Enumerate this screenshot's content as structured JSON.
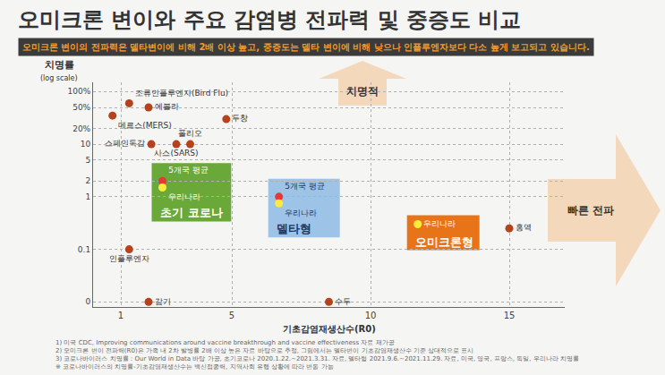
{
  "chart_data": {
    "type": "scatter",
    "title": "오미크론 변이와 주요 감염병 전파력 및 중증도 비교",
    "subtitle": "오미크론 변이의 전파력은 델타변이에 비해 2배 이상 높고, 중증도는 델타 변이에 비해 낮으나 인플루엔자보다 다소 높게 보고되고 있습니다.",
    "xlabel": "기초감염재생산수(R0)",
    "ylabel": [
      "치명률",
      "(log scale)"
    ],
    "log": "y",
    "grid": true,
    "xlim": [
      0,
      17
    ],
    "xticks": [
      1,
      5,
      10,
      15
    ],
    "ylim": [
      0.008,
      150
    ],
    "yticks": [
      {
        "value": 0.01,
        "label": "0"
      },
      0.1,
      1,
      2,
      5,
      10,
      {
        "value": 20,
        "label": "20%"
      },
      {
        "value": 50,
        "label": "50%"
      },
      {
        "value": 100,
        "label": "100%"
      }
    ],
    "series": [
      {
        "labels": [
          "메르스(MERS)",
          "조류인플루엔자(Bird Flu)",
          "에볼라",
          "두창",
          "스페인독감",
          "사스(SARS)",
          "폴리오",
          "인플루엔자",
          "감기",
          "수두",
          "홍역"
        ],
        "x": [
          0.7,
          1.3,
          2.0,
          4.8,
          2.1,
          3.0,
          3.5,
          1.3,
          2.0,
          8.5,
          15.0
        ],
        "values": [
          35,
          60,
          50,
          30,
          10,
          10,
          10,
          0.1,
          0.01,
          0.01,
          0.25
        ],
        "color": "#b5421d"
      },
      {
        "name": "초기 코로나",
        "color": "#6aa83a",
        "labels": [
          "5개국 평균",
          "우리나라"
        ],
        "x": [
          2.5,
          2.5
        ],
        "values": [
          2.0,
          1.5
        ],
        "colors": [
          "#e53935",
          "#ffeb3b"
        ]
      },
      {
        "name": "델타형",
        "color": "#9dc3e6",
        "labels": [
          "5개국 평균",
          "우리나라"
        ],
        "x": [
          6.7,
          6.7
        ],
        "values": [
          1.0,
          0.75
        ],
        "colors": [
          "#e53935",
          "#ffeb3b"
        ]
      },
      {
        "name": "오미크론형",
        "color": "#e8741a",
        "labels": [
          "우리나라"
        ],
        "x": [
          11.7
        ],
        "values": [
          0.3
        ],
        "colors": [
          "#ffeb3b"
        ]
      }
    ],
    "annotations": [
      "치명적",
      "빠른 전파"
    ],
    "notes": [
      "1) 미국 CDC, Improving communications around vaccine breakthrough and vaccine effectiveness 자료 재가공",
      "2) 오미크론 변이 전파력(R0)은 가족 내 2차 발병률 2배 이상 높은 자료 바탕으로 추정, 그림에서는 델타변이 기초감염재생산수 기준 상대적으로 표시",
      "3) 코로나바이러스 치명률 : Our World in Data 바탕 가공, 초기코로나 2020.1.22.~2021.3.31. 자료, 델타형 2021.9.6.~2021.11.29. 자료, 미국, 영국, 프랑스, 독일, 우리나라 치명률",
      "※ 코로나바이러스의 치명률-기초감염재생산수는 백신접종력, 지역사회 유행 상황에 따라 변동 가능"
    ]
  }
}
